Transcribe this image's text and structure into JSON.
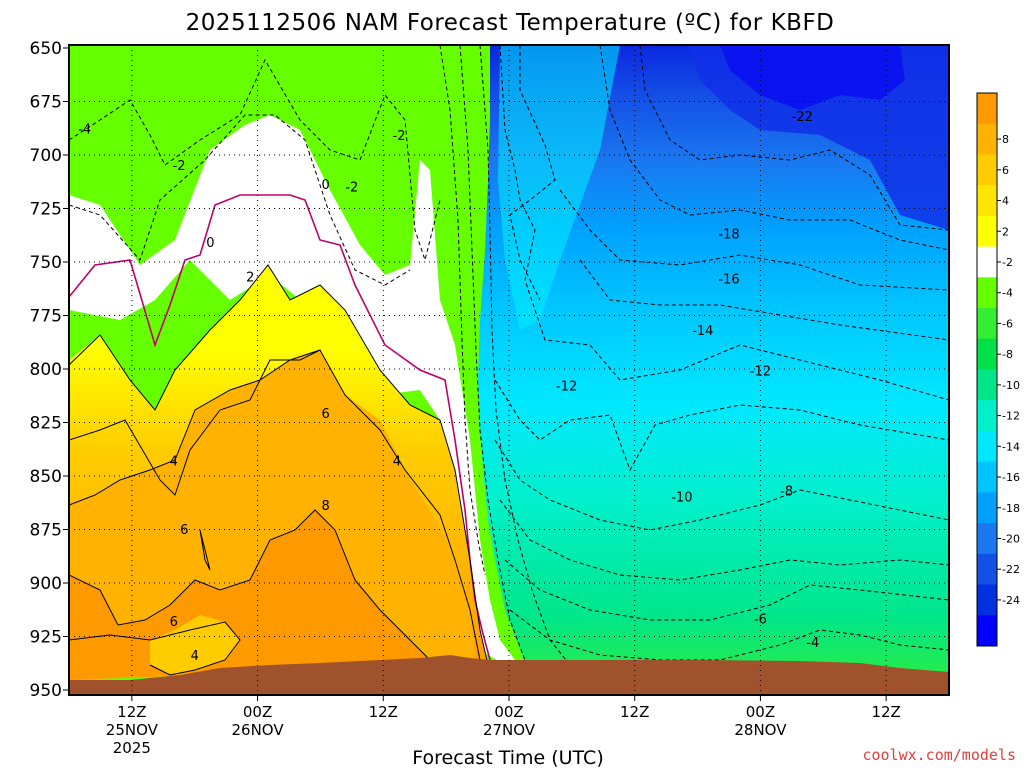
{
  "chart_data": {
    "type": "heatmap",
    "title": "2025112506 NAM Forecast Temperature (ºC) for KBFD",
    "xlabel": "Forecast Time (UTC)",
    "ylabel": "",
    "credit": "coolwx.com/models",
    "y_axis": {
      "label": "",
      "ticks": [
        "650",
        "675",
        "700",
        "725",
        "750",
        "775",
        "800",
        "825",
        "850",
        "875",
        "900",
        "925",
        "950"
      ],
      "range": [
        950,
        650
      ],
      "inverted": true
    },
    "x_axis": {
      "ticks": [
        {
          "hour": 6,
          "line1": "12Z",
          "line2": "25NOV",
          "line3": "2025"
        },
        {
          "hour": 18,
          "line1": "00Z",
          "line2": "26NOV",
          "line3": ""
        },
        {
          "hour": 30,
          "line1": "12Z",
          "line2": "",
          "line3": ""
        },
        {
          "hour": 42,
          "line1": "00Z",
          "line2": "27NOV",
          "line3": ""
        },
        {
          "hour": 54,
          "line1": "12Z",
          "line2": "",
          "line3": ""
        },
        {
          "hour": 66,
          "line1": "00Z",
          "line2": "28NOV",
          "line3": ""
        },
        {
          "hour": 78,
          "line1": "12Z",
          "line2": "",
          "line3": ""
        }
      ],
      "range_hours": [
        0,
        84
      ]
    },
    "grid": true,
    "colorbar": {
      "levels": [
        "8",
        "6",
        "4",
        "2",
        "-2",
        "-4",
        "-6",
        "-8",
        "-10",
        "-12",
        "-14",
        "-16",
        "-18",
        "-20",
        "-22",
        "-24"
      ],
      "colors": [
        "#ff9900",
        "#ffb300",
        "#ffcc00",
        "#ffe600",
        "#ffff00",
        "#ffffff",
        "#66ff00",
        "#33ee33",
        "#00e04a",
        "#00e68a",
        "#00f0cc",
        "#00e8ff",
        "#00c4ff",
        "#00a0ff",
        "#1a78f0",
        "#1450e6",
        "#0030e0",
        "#0000ff"
      ]
    },
    "contour_labels": [
      {
        "text": "-4",
        "hour": 1.5,
        "p": 690
      },
      {
        "text": "-2",
        "hour": 10.5,
        "p": 707
      },
      {
        "text": "-2",
        "hour": 31.5,
        "p": 693
      },
      {
        "text": "0",
        "hour": 13.5,
        "p": 743
      },
      {
        "text": "0",
        "hour": 24.5,
        "p": 716
      },
      {
        "text": "-2",
        "hour": 27,
        "p": 717
      },
      {
        "text": "2",
        "hour": 17.3,
        "p": 759
      },
      {
        "text": "4",
        "hour": 10.0,
        "p": 845
      },
      {
        "text": "4",
        "hour": 31.3,
        "p": 845
      },
      {
        "text": "6",
        "hour": 24.5,
        "p": 823
      },
      {
        "text": "6",
        "hour": 11.0,
        "p": 877
      },
      {
        "text": "6",
        "hour": 10.0,
        "p": 920
      },
      {
        "text": "8",
        "hour": 24.5,
        "p": 866
      },
      {
        "text": "4",
        "hour": 12.0,
        "p": 936
      },
      {
        "text": "-12",
        "hour": 47.5,
        "p": 810
      },
      {
        "text": "-12",
        "hour": 66.0,
        "p": 803
      },
      {
        "text": "-10",
        "hour": 58.5,
        "p": 862
      },
      {
        "text": "-8",
        "hour": 68.5,
        "p": 859
      },
      {
        "text": "-6",
        "hour": 66.0,
        "p": 919
      },
      {
        "text": "-4",
        "hour": 71.0,
        "p": 930
      },
      {
        "text": "-14",
        "hour": 60.5,
        "p": 784
      },
      {
        "text": "-16",
        "hour": 63.0,
        "p": 760
      },
      {
        "text": "-18",
        "hour": 63.0,
        "p": 739
      },
      {
        "text": "-22",
        "hour": 70.0,
        "p": 684
      }
    ]
  }
}
